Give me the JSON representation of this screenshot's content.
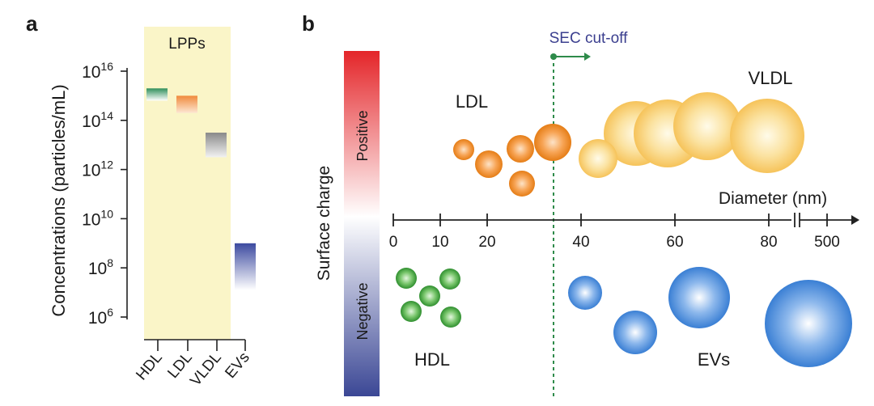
{
  "panel_a": {
    "label": "a",
    "shaded_label": "LPPs",
    "ylabel": "Concentrations (particles/mL)",
    "yticks": [
      {
        "base": "10",
        "exp": "16"
      },
      {
        "base": "10",
        "exp": "14"
      },
      {
        "base": "10",
        "exp": "12"
      },
      {
        "base": "10",
        "exp": "10"
      },
      {
        "base": "10",
        "exp": "8"
      },
      {
        "base": "10",
        "exp": "6"
      }
    ]
  },
  "panel_b": {
    "label": "b",
    "cutoff_label": "SEC cut-off",
    "charge_axis_label": "Surface charge",
    "positive_label": "Positive",
    "negative_label": "Negative",
    "diameter_label": "Diameter (nm)",
    "xticks": [
      "0",
      "10",
      "20",
      "40",
      "60",
      "80",
      "500"
    ],
    "group_labels": {
      "ldl": "LDL",
      "vldl": "VLDL",
      "hdl": "HDL",
      "evs": "EVs"
    }
  },
  "chart_data": [
    {
      "type": "bar",
      "title": "",
      "xlabel": "",
      "ylabel": "Concentrations (particles/mL)",
      "yscale": "log10",
      "ylim_log10": [
        6,
        16
      ],
      "categories": [
        "HDL",
        "LDL",
        "VLDL",
        "EVs"
      ],
      "ranges_log10": [
        {
          "category": "HDL",
          "low": 14.8,
          "high": 15.3,
          "color": "#2f8f5b"
        },
        {
          "category": "LDL",
          "low": 14.3,
          "high": 15.0,
          "color": "#f08a3c"
        },
        {
          "category": "VLDL",
          "low": 12.5,
          "high": 13.5,
          "color": "#8a8a8a"
        },
        {
          "category": "EVs",
          "low": 7.1,
          "high": 9.0,
          "color": "#3c4aa0"
        }
      ],
      "shaded_region": {
        "label": "LPPs",
        "categories": [
          "HDL",
          "LDL",
          "VLDL"
        ],
        "color": "#faf5c8"
      }
    },
    {
      "type": "scatter",
      "title": "",
      "xlabel": "Diameter (nm)",
      "ylabel": "Surface charge",
      "xticks": [
        "0",
        "10",
        "20",
        "40",
        "60",
        "80",
        "500"
      ],
      "cutoff": {
        "label": "SEC cut-off",
        "x": 35
      },
      "series": [
        {
          "name": "LDL",
          "charge": "Positive",
          "color": "#f08a1e",
          "diameters": [
            15,
            20,
            22,
            26,
            27,
            33
          ]
        },
        {
          "name": "VLDL",
          "charge": "Positive",
          "color": "#f7c75a",
          "diameters": [
            43,
            47,
            53,
            58,
            67,
            80
          ]
        },
        {
          "name": "HDL",
          "charge": "Negative",
          "color": "#3fa83f",
          "diameters": [
            7,
            9,
            11,
            12,
            13
          ]
        },
        {
          "name": "EVs",
          "charge": "Negative",
          "color": "#3a84d6",
          "diameters": [
            45,
            55,
            70,
            500
          ]
        }
      ]
    }
  ]
}
